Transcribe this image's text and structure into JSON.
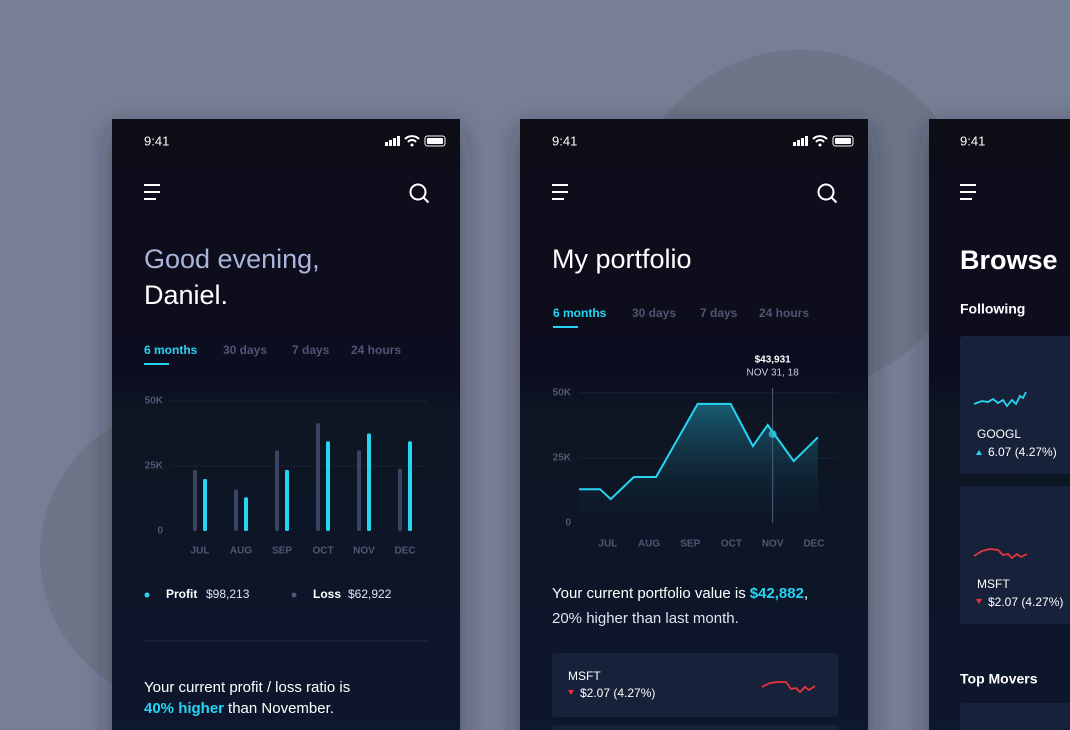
{
  "screens": [
    {
      "time": "9:41",
      "greeting": "Good evening,",
      "name": "Daniel.",
      "tabs": [
        "6 months",
        "30 days",
        "7 days",
        "24 hours"
      ],
      "summary": "Your current profit / loss ratio is",
      "highlight": "40% higher",
      "summary_end": "than November."
    },
    {
      "time": "9:41",
      "title": "My portfolio",
      "tabs": [
        "6 months",
        "30 days",
        "7 days",
        "24 hours"
      ],
      "summary": "Your current portfolio value is",
      "highlight": "$42,882",
      "punct": ",",
      "summary_end": "20% higher than last month.",
      "cards": [
        {
          "ticker": "MSFT",
          "change": "$2.07 (4.27%)"
        }
      ]
    },
    {
      "time": "9:41",
      "title": "Browse",
      "section": "Following",
      "cards": [
        {
          "ticker": "GOOGL",
          "change": "6.07 (4.27%)"
        },
        {
          "ticker": "MSFT",
          "change": "$2.07 (4.27%)"
        }
      ],
      "section2": "Top Movers"
    }
  ],
  "chart_data": [
    {
      "type": "bar",
      "categories": [
        "JUL",
        "AUG",
        "SEP",
        "OCT",
        "NOV",
        "DEC"
      ],
      "series": [
        {
          "name": "Profit",
          "color": "#25d5f2",
          "total": "$98,213",
          "values": [
            20000,
            13000,
            23500,
            34500,
            37500,
            34500
          ]
        },
        {
          "name": "Loss",
          "color": "#3b4460",
          "total": "$62,922",
          "values": [
            23500,
            16000,
            31000,
            41500,
            31000,
            24000
          ]
        }
      ],
      "ylim": [
        0,
        50000
      ],
      "yticks": [
        0,
        {
          "value": 25000,
          "label": "25K"
        },
        {
          "value": 50000,
          "label": "50K"
        }
      ],
      "grid": true
    },
    {
      "type": "area",
      "color": "#25d5f2",
      "x": [
        -0.7,
        -0.19,
        0.07,
        0.63,
        1.17,
        2.18,
        2.98,
        3.52,
        3.88,
        4.51,
        5.1
      ],
      "values": [
        13000,
        13000,
        9200,
        17700,
        17700,
        45800,
        45800,
        29600,
        37700,
        23800,
        33000
      ],
      "xlim": [
        -0.7,
        5.1
      ],
      "xticks": [
        {
          "value": 0,
          "label": "JUL"
        },
        {
          "value": 1,
          "label": "AUG"
        },
        {
          "value": 2,
          "label": "SEP"
        },
        {
          "value": 3,
          "label": "OCT"
        },
        {
          "value": 4,
          "label": "NOV"
        },
        {
          "value": 5,
          "label": "DEC"
        }
      ],
      "ylim": [
        0,
        50000
      ],
      "yticks": [
        0,
        {
          "value": 25000,
          "label": "25K"
        },
        {
          "value": 50000,
          "label": "50K"
        }
      ],
      "grid": true,
      "annotation": {
        "x": 4.0,
        "y": 34200,
        "label": "$43,931",
        "sublabel": "NOV 31, 18"
      }
    }
  ]
}
